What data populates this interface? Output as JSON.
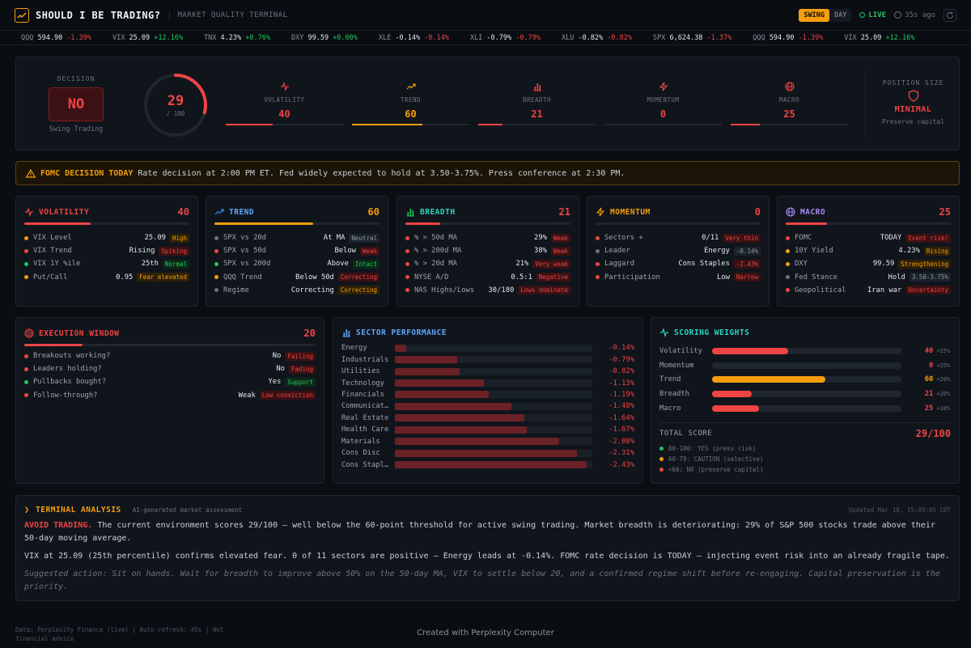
{
  "header": {
    "title": "SHOULD I BE TRADING?",
    "subtitle": "MARKET QUALITY TERMINAL",
    "modes": [
      "SWING",
      "DAY"
    ],
    "active_mode": "SWING",
    "live_label": "LIVE",
    "updated_ago": "35s ago"
  },
  "ticker": [
    {
      "sym": "QQQ",
      "px": "594.90",
      "chg": "-1.39%",
      "dir": "down"
    },
    {
      "sym": "VIX",
      "px": "25.09",
      "chg": "+12.16%",
      "dir": "up"
    },
    {
      "sym": "TNX",
      "px": "4.23%",
      "chg": "+0.76%",
      "dir": "up"
    },
    {
      "sym": "DXY",
      "px": "99.59",
      "chg": "+0.00%",
      "dir": "up"
    },
    {
      "sym": "XLE",
      "px": "-0.14%",
      "chg": "-0.14%",
      "dir": "down"
    },
    {
      "sym": "XLI",
      "px": "-0.79%",
      "chg": "-0.79%",
      "dir": "down"
    },
    {
      "sym": "XLU",
      "px": "-0.82%",
      "chg": "-0.82%",
      "dir": "down"
    },
    {
      "sym": "SPX",
      "px": "6,624.38",
      "chg": "-1.37%",
      "dir": "down"
    },
    {
      "sym": "QQQ",
      "px": "594.90",
      "chg": "-1.39%",
      "dir": "down"
    },
    {
      "sym": "VIX",
      "px": "25.09",
      "chg": "+12.16%",
      "dir": "up"
    }
  ],
  "hero": {
    "decision_label": "DECISION",
    "decision": "NO",
    "decision_sub": "Swing Trading",
    "score": "29",
    "score_of": "/ 100",
    "score_fraction": 0.29,
    "metrics": [
      {
        "label": "VOLATILITY",
        "value": "40",
        "fraction": 0.4,
        "color": "#ef4444",
        "icon": "activity-icon"
      },
      {
        "label": "TREND",
        "value": "60",
        "fraction": 0.6,
        "color": "#f59e0b",
        "icon": "trending-up-icon"
      },
      {
        "label": "BREADTH",
        "value": "21",
        "fraction": 0.21,
        "color": "#ef4444",
        "icon": "bar-chart-icon"
      },
      {
        "label": "MOMENTUM",
        "value": "0",
        "fraction": 0.0,
        "color": "#ef4444",
        "icon": "zap-icon"
      },
      {
        "label": "MACRO",
        "value": "25",
        "fraction": 0.25,
        "color": "#ef4444",
        "icon": "globe-icon"
      }
    ],
    "position_label": "POSITION SIZE",
    "position_value": "MINIMAL",
    "position_sub": "Preserve capital"
  },
  "alert": {
    "title": "FOMC DECISION TODAY",
    "text": "Rate decision at 2:00 PM ET. Fed widely expected to hold at 3.50-3.75%. Press conference at 2:30 PM."
  },
  "panels": {
    "volatility": {
      "title": "VOLATILITY",
      "score": "40",
      "fraction": 0.4,
      "color": "#ef4444",
      "rows": [
        {
          "label": "VIX Level",
          "value": "25.09",
          "badge": "High",
          "badge_tone": "orange",
          "dot": "#f59e0b"
        },
        {
          "label": "VIX Trend",
          "value": "Rising",
          "badge": "Spiking",
          "badge_tone": "red",
          "dot": "#ef4444"
        },
        {
          "label": "VIX 1Y %ile",
          "value": "25th",
          "badge": "Normal",
          "badge_tone": "green",
          "dot": "#22c55e"
        },
        {
          "label": "Put/Call",
          "value": "0.95",
          "badge": "Fear elevated",
          "badge_tone": "orange",
          "dot": "#f59e0b"
        }
      ]
    },
    "trend": {
      "title": "TREND",
      "score": "60",
      "fraction": 0.6,
      "color": "#f59e0b",
      "rows": [
        {
          "label": "SPX vs 20d",
          "value": "At MA",
          "badge": "Neutral",
          "badge_tone": "gray",
          "dot": "#6b7280"
        },
        {
          "label": "SPX vs 50d",
          "value": "Below",
          "badge": "Weak",
          "badge_tone": "red",
          "dot": "#ef4444"
        },
        {
          "label": "SPX vs 200d",
          "value": "Above",
          "badge": "Intact",
          "badge_tone": "green",
          "dot": "#22c55e"
        },
        {
          "label": "QQQ Trend",
          "value": "Below 50d",
          "badge": "Correcting",
          "badge_tone": "red",
          "dot": "#f59e0b"
        },
        {
          "label": "Regime",
          "value": "Correcting",
          "badge": "Correcting",
          "badge_tone": "orange",
          "dot": "#6b7280"
        }
      ]
    },
    "breadth": {
      "title": "BREADTH",
      "score": "21",
      "fraction": 0.21,
      "color": "#ef4444",
      "rows": [
        {
          "label": "% > 50d MA",
          "value": "29%",
          "badge": "Weak",
          "badge_tone": "red",
          "dot": "#ef4444"
        },
        {
          "label": "% > 200d MA",
          "value": "38%",
          "badge": "Weak",
          "badge_tone": "red",
          "dot": "#ef4444"
        },
        {
          "label": "% > 20d MA",
          "value": "21%",
          "badge": "Very weak",
          "badge_tone": "red",
          "dot": "#ef4444"
        },
        {
          "label": "NYSE A/D",
          "value": "0.5:1",
          "badge": "Negative",
          "badge_tone": "red",
          "dot": "#ef4444"
        },
        {
          "label": "NAS Highs/Lows",
          "value": "30/180",
          "badge": "Lows dominate",
          "badge_tone": "red",
          "dot": "#ef4444"
        }
      ]
    },
    "momentum": {
      "title": "MOMENTUM",
      "score": "0",
      "fraction": 0.0,
      "color": "#ef4444",
      "rows": [
        {
          "label": "Sectors +",
          "value": "0/11",
          "badge": "Very thin",
          "badge_tone": "red",
          "dot": "#ef4444"
        },
        {
          "label": "Leader",
          "value": "Energy",
          "badge": "-0.14%",
          "badge_tone": "gray",
          "dot": "#6b7280"
        },
        {
          "label": "Laggard",
          "value": "Cons Staples",
          "badge": "-2.43%",
          "badge_tone": "red",
          "dot": "#ef4444"
        },
        {
          "label": "Participation",
          "value": "Low",
          "badge": "Narrow",
          "badge_tone": "red",
          "dot": "#ef4444"
        }
      ]
    },
    "macro": {
      "title": "MACRO",
      "score": "25",
      "fraction": 0.25,
      "color": "#ef4444",
      "rows": [
        {
          "label": "FOMC",
          "value": "TODAY",
          "badge": "Event risk!",
          "badge_tone": "red",
          "dot": "#ef4444"
        },
        {
          "label": "10Y Yield",
          "value": "4.23%",
          "badge": "Rising",
          "badge_tone": "orange",
          "dot": "#f59e0b"
        },
        {
          "label": "DXY",
          "value": "99.59",
          "badge": "Strengthening",
          "badge_tone": "orange",
          "dot": "#f59e0b"
        },
        {
          "label": "Fed Stance",
          "value": "Hold",
          "badge": "3.50-3.75%",
          "badge_tone": "gray",
          "dot": "#6b7280"
        },
        {
          "label": "Geopolitical",
          "value": "Iran war",
          "badge": "Uncertainty",
          "badge_tone": "red",
          "dot": "#ef4444"
        }
      ]
    }
  },
  "execution": {
    "title": "EXECUTION WINDOW",
    "score": "20",
    "fraction": 0.2,
    "rows": [
      {
        "label": "Breakouts working?",
        "value": "No",
        "badge": "Failing",
        "badge_tone": "red",
        "dot": "#ef4444"
      },
      {
        "label": "Leaders holding?",
        "value": "No",
        "badge": "Fading",
        "badge_tone": "red",
        "dot": "#ef4444"
      },
      {
        "label": "Pullbacks bought?",
        "value": "Yes",
        "badge": "Support",
        "badge_tone": "green",
        "dot": "#22c55e"
      },
      {
        "label": "Follow-through?",
        "value": "Weak",
        "badge": "Low conviction",
        "badge_tone": "red",
        "dot": "#ef4444"
      }
    ]
  },
  "sectors": {
    "title": "SECTOR PERFORMANCE",
    "items": [
      {
        "name": "Energy",
        "value": "-0.14%",
        "change": -0.14
      },
      {
        "name": "Industrials",
        "value": "-0.79%",
        "change": -0.79
      },
      {
        "name": "Utilities",
        "value": "-0.82%",
        "change": -0.82
      },
      {
        "name": "Technology",
        "value": "-1.13%",
        "change": -1.13
      },
      {
        "name": "Financials",
        "value": "-1.19%",
        "change": -1.19
      },
      {
        "name": "Communicat…",
        "value": "-1.48%",
        "change": -1.48
      },
      {
        "name": "Real Estate",
        "value": "-1.64%",
        "change": -1.64
      },
      {
        "name": "Health Care",
        "value": "-1.67%",
        "change": -1.67
      },
      {
        "name": "Materials",
        "value": "-2.08%",
        "change": -2.08
      },
      {
        "name": "Cons Disc",
        "value": "-2.31%",
        "change": -2.31
      },
      {
        "name": "Cons Stapl…",
        "value": "-2.43%",
        "change": -2.43
      }
    ]
  },
  "weights": {
    "title": "SCORING WEIGHTS",
    "items": [
      {
        "name": "Volatility",
        "score": "40",
        "weight": "×25%",
        "fraction": 0.4,
        "color": "#ef4444"
      },
      {
        "name": "Momentum",
        "score": "0",
        "weight": "×25%",
        "fraction": 0.0,
        "color": "#ef4444"
      },
      {
        "name": "Trend",
        "score": "60",
        "weight": "×20%",
        "fraction": 0.6,
        "color": "#f59e0b"
      },
      {
        "name": "Breadth",
        "score": "21",
        "weight": "×20%",
        "fraction": 0.21,
        "color": "#ef4444"
      },
      {
        "name": "Macro",
        "score": "25",
        "weight": "×10%",
        "fraction": 0.25,
        "color": "#ef4444"
      }
    ],
    "total_label": "TOTAL SCORE",
    "total_value": "29/100",
    "legend": [
      {
        "text": "80-100: YES (press risk)",
        "color": "#22c55e"
      },
      {
        "text": "60-79: CAUTION (selective)",
        "color": "#f59e0b"
      },
      {
        "text": "<60: NO (preserve capital)",
        "color": "#ef4444"
      }
    ]
  },
  "analysis": {
    "title": "TERMINAL ANALYSIS",
    "subtitle": "AI-generated market assessment",
    "updated": "Updated Mar 18, 15:09:05 CDT",
    "lead": "AVOID TRADING.",
    "p1": "The current environment scores 29/100 — well below the 60-point threshold for active swing trading. Market breadth is deteriorating: 29% of S&P 500 stocks trade above their 50-day moving average.",
    "p2": "VIX at 25.09 (25th percentile) confirms elevated fear. 0 of 11 sectors are positive — Energy leads at -0.14%. FOMC rate decision is TODAY — injecting event risk into an already fragile tape.",
    "p3": "Suggested action: Sit on hands. Wait for breadth to improve above 50% on the 50-day MA, VIX to settle below 20, and a confirmed regime shift before re-engaging. Capital preservation is the priority."
  },
  "footer": {
    "left": "Data: Perplexity Finance (live) | Auto-refresh: 45s | Not financial advice",
    "center": "Created with Perplexity Computer"
  }
}
